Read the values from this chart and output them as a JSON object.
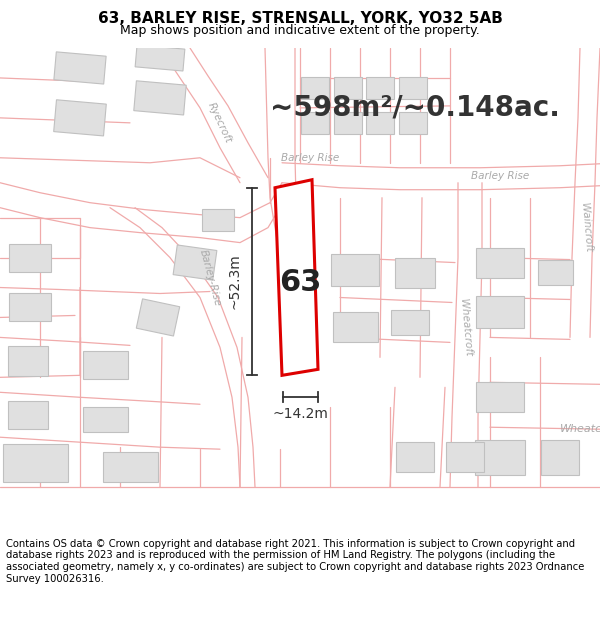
{
  "title": "63, BARLEY RISE, STRENSALL, YORK, YO32 5AB",
  "subtitle": "Map shows position and indicative extent of the property.",
  "area_text": "~598m²/~0.148ac.",
  "dim_width": "~14.2m",
  "dim_height": "~52.3m",
  "label": "63",
  "footer": "Contains OS data © Crown copyright and database right 2021. This information is subject to Crown copyright and database rights 2023 and is reproduced with the permission of HM Land Registry. The polygons (including the associated geometry, namely x, y co-ordinates) are subject to Crown copyright and database rights 2023 Ordnance Survey 100026316.",
  "bg_color": "#ffffff",
  "map_bg": "#ffffff",
  "boundary_color": "#f0aaaa",
  "building_fill": "#e0e0e0",
  "building_edge": "#c0c0c0",
  "plot_color": "#dd0000",
  "plot_fill": "#ffffff",
  "dim_color": "#333333",
  "label_color": "#222222",
  "street_label_color": "#aaaaaa",
  "title_fontsize": 11,
  "subtitle_fontsize": 9,
  "area_fontsize": 20,
  "label_fontsize": 22,
  "dim_fontsize": 10,
  "footer_fontsize": 7.2
}
